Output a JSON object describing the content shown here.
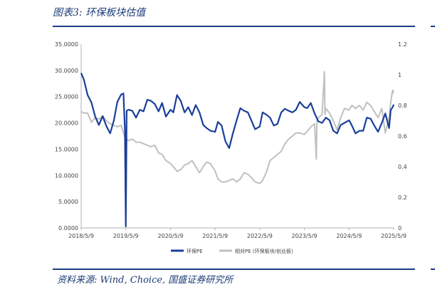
{
  "title": "图表3:  环保板块估值",
  "source": "资料来源:  Wind,  Choice,  国盛证券研究所",
  "chart_data": {
    "type": "line",
    "x_ticks": [
      "2018/5/9",
      "2019/5/9",
      "2020/5/9",
      "2021/5/9",
      "2022/5/9",
      "2023/5/9",
      "2024/5/9",
      "2025/5/9"
    ],
    "x_range": [
      "2018/5/9",
      "2025/5/9"
    ],
    "y_left_ticks": [
      "0.0000",
      "5.0000",
      "10.0000",
      "15.0000",
      "20.0000",
      "25.0000",
      "30.0000",
      "35.0000"
    ],
    "y_left_range": [
      0,
      35
    ],
    "y_right_ticks": [
      "0",
      "0.2",
      "0.4",
      "0.6",
      "0.8",
      "1",
      "1.2"
    ],
    "y_right_range": [
      0,
      1.2
    ],
    "grid": false,
    "legend_position": "bottom",
    "series": [
      {
        "name": "环保PE",
        "axis": "left",
        "color": "#1a3f9a",
        "points": [
          [
            "2018/5/9",
            29.5
          ],
          [
            "2018/6/1",
            28.2
          ],
          [
            "2018/7/1",
            25.3
          ],
          [
            "2018/8/1",
            23.9
          ],
          [
            "2018/9/1",
            21.2
          ],
          [
            "2018/10/1",
            19.6
          ],
          [
            "2018/11/1",
            21.3
          ],
          [
            "2018/12/1",
            19.4
          ],
          [
            "2019/1/1",
            18.0
          ],
          [
            "2019/2/1",
            20.5
          ],
          [
            "2019/3/1",
            24.0
          ],
          [
            "2019/4/1",
            25.4
          ],
          [
            "2019/4/20",
            25.6
          ],
          [
            "2019/5/2",
            18.5
          ],
          [
            "2019/5/9",
            0.3
          ],
          [
            "2019/5/16",
            22.3
          ],
          [
            "2019/6/1",
            22.5
          ],
          [
            "2019/7/1",
            22.3
          ],
          [
            "2019/8/1",
            21.0
          ],
          [
            "2019/9/1",
            22.5
          ],
          [
            "2019/10/1",
            22.2
          ],
          [
            "2019/11/1",
            24.4
          ],
          [
            "2019/12/1",
            24.2
          ],
          [
            "2020/1/1",
            23.6
          ],
          [
            "2020/2/1",
            22.2
          ],
          [
            "2020/3/1",
            23.8
          ],
          [
            "2020/4/1",
            21.2
          ],
          [
            "2020/5/9",
            22.5
          ],
          [
            "2020/6/1",
            22.0
          ],
          [
            "2020/7/1",
            25.3
          ],
          [
            "2020/8/1",
            24.2
          ],
          [
            "2020/9/1",
            22.0
          ],
          [
            "2020/10/1",
            23.0
          ],
          [
            "2020/11/1",
            21.5
          ],
          [
            "2020/12/1",
            23.4
          ],
          [
            "2021/1/1",
            22.0
          ],
          [
            "2021/2/1",
            19.6
          ],
          [
            "2021/3/1",
            19.0
          ],
          [
            "2021/4/1",
            18.5
          ],
          [
            "2021/5/9",
            18.3
          ],
          [
            "2021/6/1",
            20.2
          ],
          [
            "2021/7/1",
            19.5
          ],
          [
            "2021/8/1",
            16.5
          ],
          [
            "2021/9/1",
            15.2
          ],
          [
            "2021/10/1",
            18.0
          ],
          [
            "2021/11/1",
            20.5
          ],
          [
            "2021/12/1",
            22.8
          ],
          [
            "2022/1/1",
            22.3
          ],
          [
            "2022/2/1",
            22.0
          ],
          [
            "2022/3/1",
            20.5
          ],
          [
            "2022/4/1",
            18.8
          ],
          [
            "2022/5/9",
            19.3
          ],
          [
            "2022/6/1",
            22.0
          ],
          [
            "2022/7/1",
            21.6
          ],
          [
            "2022/8/1",
            21.0
          ],
          [
            "2022/9/1",
            19.5
          ],
          [
            "2022/10/1",
            19.8
          ],
          [
            "2022/11/1",
            22.0
          ],
          [
            "2022/12/1",
            22.7
          ],
          [
            "2023/1/1",
            22.3
          ],
          [
            "2023/2/1",
            22.0
          ],
          [
            "2023/3/1",
            22.5
          ],
          [
            "2023/4/1",
            24.0
          ],
          [
            "2023/5/9",
            23.0
          ],
          [
            "2023/6/1",
            22.8
          ],
          [
            "2023/7/1",
            23.8
          ],
          [
            "2023/8/1",
            21.8
          ],
          [
            "2023/9/1",
            20.3
          ],
          [
            "2023/10/1",
            20.0
          ],
          [
            "2023/11/1",
            21.0
          ],
          [
            "2023/12/1",
            20.5
          ],
          [
            "2024/1/1",
            18.5
          ],
          [
            "2024/2/1",
            18.0
          ],
          [
            "2024/3/1",
            19.6
          ],
          [
            "2024/4/1",
            20.0
          ],
          [
            "2024/5/9",
            20.5
          ],
          [
            "2024/6/1",
            19.5
          ],
          [
            "2024/7/1",
            18.0
          ],
          [
            "2024/8/1",
            18.5
          ],
          [
            "2024/9/1",
            18.5
          ],
          [
            "2024/10/1",
            21.0
          ],
          [
            "2024/11/1",
            20.8
          ],
          [
            "2024/12/1",
            19.5
          ],
          [
            "2025/1/1",
            18.3
          ],
          [
            "2025/2/1",
            20.0
          ],
          [
            "2025/3/1",
            21.8
          ],
          [
            "2025/4/1",
            19.0
          ],
          [
            "2025/4/15",
            22.5
          ],
          [
            "2025/5/1",
            23.0
          ],
          [
            "2025/5/9",
            23.5
          ]
        ]
      },
      {
        "name": "相对PE (环保板块/创业板)",
        "axis": "right",
        "color": "#c0c0c0",
        "points": [
          [
            "2018/5/9",
            0.76
          ],
          [
            "2018/6/1",
            0.75
          ],
          [
            "2018/7/1",
            0.75
          ],
          [
            "2018/8/1",
            0.69
          ],
          [
            "2018/9/1",
            0.72
          ],
          [
            "2018/10/1",
            0.71
          ],
          [
            "2018/11/1",
            0.73
          ],
          [
            "2018/12/1",
            0.7
          ],
          [
            "2019/1/1",
            0.68
          ],
          [
            "2019/2/1",
            0.67
          ],
          [
            "2019/3/1",
            0.66
          ],
          [
            "2019/4/1",
            0.67
          ],
          [
            "2019/5/2",
            0.59
          ],
          [
            "2019/5/9",
            0.0
          ],
          [
            "2019/5/16",
            0.58
          ],
          [
            "2019/6/1",
            0.57
          ],
          [
            "2019/7/1",
            0.58
          ],
          [
            "2019/8/1",
            0.56
          ],
          [
            "2019/9/1",
            0.56
          ],
          [
            "2019/10/1",
            0.55
          ],
          [
            "2019/11/1",
            0.54
          ],
          [
            "2019/12/1",
            0.53
          ],
          [
            "2020/1/1",
            0.54
          ],
          [
            "2020/2/1",
            0.49
          ],
          [
            "2020/3/1",
            0.48
          ],
          [
            "2020/4/1",
            0.44
          ],
          [
            "2020/5/9",
            0.42
          ],
          [
            "2020/6/1",
            0.4
          ],
          [
            "2020/7/1",
            0.37
          ],
          [
            "2020/8/1",
            0.38
          ],
          [
            "2020/9/1",
            0.41
          ],
          [
            "2020/10/1",
            0.42
          ],
          [
            "2020/11/1",
            0.44
          ],
          [
            "2020/12/1",
            0.4
          ],
          [
            "2021/1/1",
            0.36
          ],
          [
            "2021/2/1",
            0.4
          ],
          [
            "2021/3/1",
            0.43
          ],
          [
            "2021/4/1",
            0.42
          ],
          [
            "2021/5/9",
            0.37
          ],
          [
            "2021/6/1",
            0.32
          ],
          [
            "2021/7/1",
            0.3
          ],
          [
            "2021/8/1",
            0.3
          ],
          [
            "2021/9/1",
            0.31
          ],
          [
            "2021/10/1",
            0.32
          ],
          [
            "2021/11/1",
            0.3
          ],
          [
            "2021/12/1",
            0.32
          ],
          [
            "2022/1/1",
            0.36
          ],
          [
            "2022/2/1",
            0.35
          ],
          [
            "2022/3/1",
            0.33
          ],
          [
            "2022/4/1",
            0.3
          ],
          [
            "2022/5/9",
            0.29
          ],
          [
            "2022/6/1",
            0.31
          ],
          [
            "2022/7/1",
            0.36
          ],
          [
            "2022/8/1",
            0.44
          ],
          [
            "2022/9/1",
            0.46
          ],
          [
            "2022/10/1",
            0.48
          ],
          [
            "2022/11/1",
            0.5
          ],
          [
            "2022/12/1",
            0.55
          ],
          [
            "2023/1/1",
            0.58
          ],
          [
            "2023/2/1",
            0.6
          ],
          [
            "2023/3/1",
            0.62
          ],
          [
            "2023/4/1",
            0.62
          ],
          [
            "2023/5/9",
            0.61
          ],
          [
            "2023/6/1",
            0.63
          ],
          [
            "2023/7/1",
            0.66
          ],
          [
            "2023/8/1",
            0.68
          ],
          [
            "2023/8/15",
            0.45
          ],
          [
            "2023/8/20",
            0.7
          ],
          [
            "2023/9/1",
            0.72
          ],
          [
            "2023/10/1",
            0.74
          ],
          [
            "2023/10/20",
            1.02
          ],
          [
            "2023/10/25",
            0.74
          ],
          [
            "2023/11/1",
            0.78
          ],
          [
            "2023/12/1",
            0.75
          ],
          [
            "2024/1/1",
            0.7
          ],
          [
            "2024/2/1",
            0.64
          ],
          [
            "2024/3/1",
            0.72
          ],
          [
            "2024/4/1",
            0.78
          ],
          [
            "2024/5/9",
            0.77
          ],
          [
            "2024/6/1",
            0.8
          ],
          [
            "2024/7/1",
            0.78
          ],
          [
            "2024/8/1",
            0.8
          ],
          [
            "2024/9/1",
            0.77
          ],
          [
            "2024/10/1",
            0.82
          ],
          [
            "2024/11/1",
            0.8
          ],
          [
            "2024/12/1",
            0.76
          ],
          [
            "2025/1/1",
            0.72
          ],
          [
            "2025/2/1",
            0.78
          ],
          [
            "2025/3/1",
            0.62
          ],
          [
            "2025/4/1",
            0.72
          ],
          [
            "2025/4/20",
            0.85
          ],
          [
            "2025/5/1",
            0.9
          ],
          [
            "2025/5/9",
            0.88
          ]
        ]
      }
    ]
  }
}
